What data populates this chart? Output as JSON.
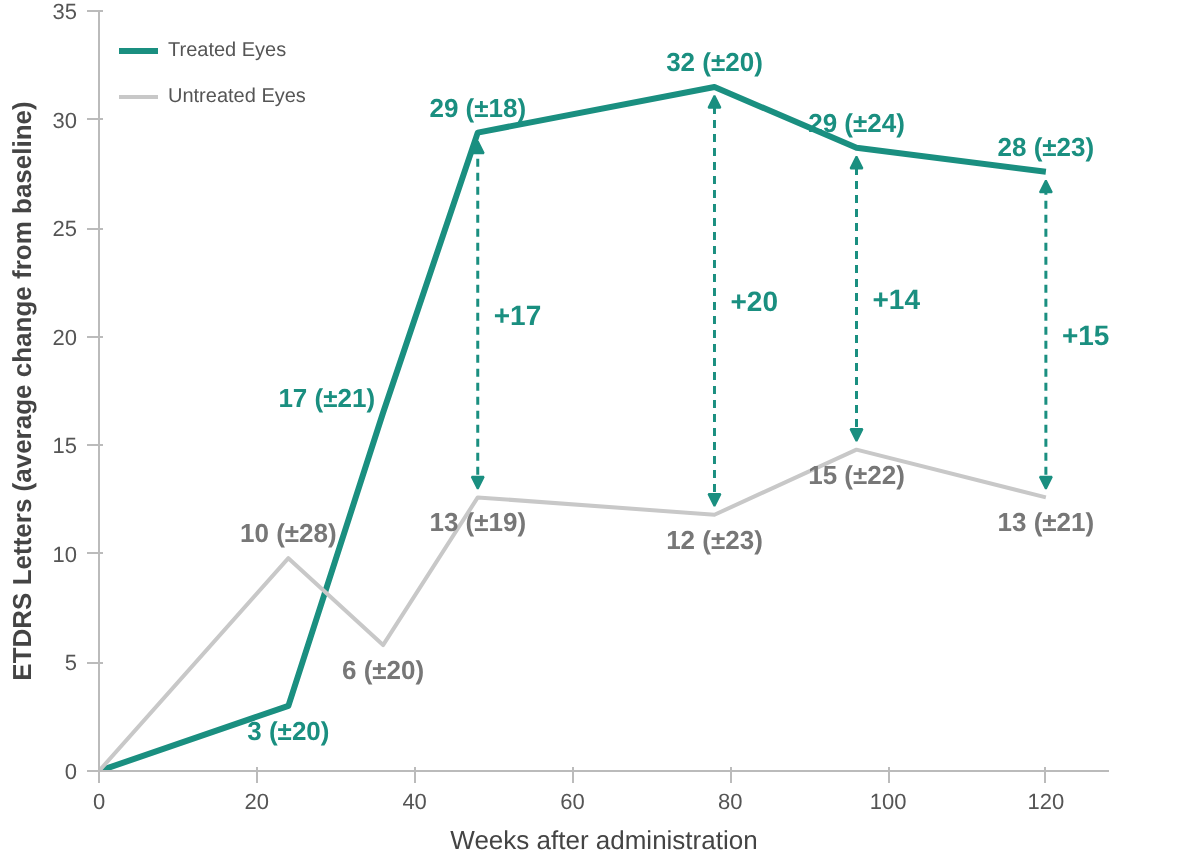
{
  "chart_data": {
    "type": "line",
    "xlabel": "Weeks after administration",
    "ylabel": "ETDRS Letters (average change from baseline)",
    "xlim": [
      0,
      128
    ],
    "xticks": [
      0,
      20,
      40,
      60,
      80,
      100,
      120
    ],
    "ylim": [
      0,
      35
    ],
    "yticks": [
      0,
      5,
      10,
      15,
      20,
      25,
      30,
      35
    ],
    "grid": false,
    "legend": "top left",
    "marker": "none",
    "line_style": "solid",
    "series": [
      {
        "name": "Treated Eyes",
        "color": "#1a8f80",
        "x": [
          0,
          24,
          36,
          48,
          78,
          96,
          120
        ],
        "values": [
          0,
          3,
          16.5,
          29.4,
          31.5,
          28.7,
          27.6
        ],
        "value_labels": [
          null,
          "3 (±20)",
          "17 (±21)",
          "29 (±18)",
          "32 (±20)",
          "29 (±24)",
          "28 (±23)"
        ]
      },
      {
        "name": "Untreated Eyes",
        "color": "#c8c8c8",
        "x": [
          0,
          24,
          36,
          48,
          78,
          96,
          120
        ],
        "values": [
          0,
          9.8,
          5.8,
          12.6,
          11.8,
          14.8,
          12.6
        ],
        "value_labels": [
          null,
          "10 (±28)",
          "6 (±20)",
          "13 (±19)",
          "12 (±23)",
          "15 (±22)",
          "13 (±21)"
        ]
      }
    ],
    "annotations": [
      "+17",
      "+20",
      "+14",
      "+15"
    ]
  }
}
